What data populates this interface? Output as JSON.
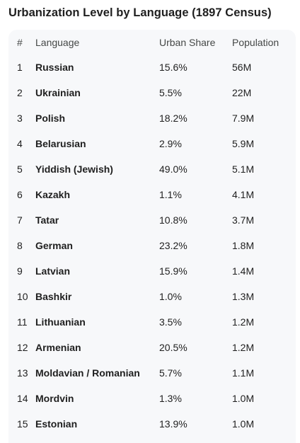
{
  "title": "Urbanization Level by Language (1897 Census)",
  "table": {
    "headers": {
      "num": "#",
      "language": "Language",
      "urban_share": "Urban Share",
      "population": "Population"
    },
    "rows": [
      {
        "num": "1",
        "language": "Russian",
        "urban_share": "15.6%",
        "population": "56M"
      },
      {
        "num": "2",
        "language": "Ukrainian",
        "urban_share": "5.5%",
        "population": "22M"
      },
      {
        "num": "3",
        "language": "Polish",
        "urban_share": "18.2%",
        "population": "7.9M"
      },
      {
        "num": "4",
        "language": "Belarusian",
        "urban_share": "2.9%",
        "population": "5.9M"
      },
      {
        "num": "5",
        "language": "Yiddish (Jewish)",
        "urban_share": "49.0%",
        "population": "5.1M"
      },
      {
        "num": "6",
        "language": "Kazakh",
        "urban_share": "1.1%",
        "population": "4.1M"
      },
      {
        "num": "7",
        "language": "Tatar",
        "urban_share": "10.8%",
        "population": "3.7M"
      },
      {
        "num": "8",
        "language": "German",
        "urban_share": "23.2%",
        "population": "1.8M"
      },
      {
        "num": "9",
        "language": "Latvian",
        "urban_share": "15.9%",
        "population": "1.4M"
      },
      {
        "num": "10",
        "language": "Bashkir",
        "urban_share": "1.0%",
        "population": "1.3M"
      },
      {
        "num": "11",
        "language": "Lithuanian",
        "urban_share": "3.5%",
        "population": "1.2M"
      },
      {
        "num": "12",
        "language": "Armenian",
        "urban_share": "20.5%",
        "population": "1.2M"
      },
      {
        "num": "13",
        "language": "Moldavian / Romanian",
        "urban_share": "5.7%",
        "population": "1.1M"
      },
      {
        "num": "14",
        "language": "Mordvin",
        "urban_share": "1.3%",
        "population": "1.0M"
      },
      {
        "num": "15",
        "language": "Estonian",
        "urban_share": "13.9%",
        "population": "1.0M"
      }
    ]
  }
}
